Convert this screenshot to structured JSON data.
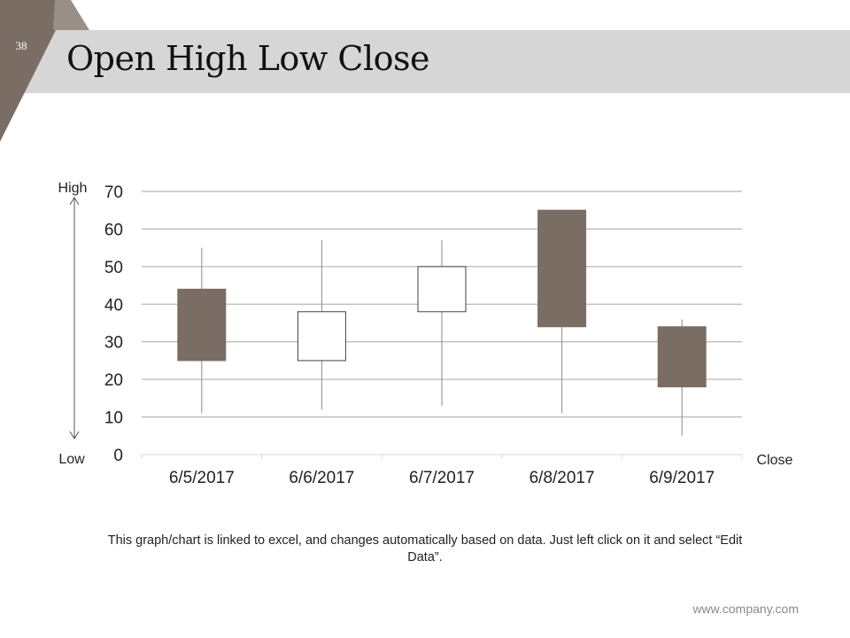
{
  "slide": {
    "number": "38",
    "title": "Open High Low Close",
    "note": "This graph/chart is linked to excel, and changes automatically based on data. Just left click on it and select “Edit Data”.",
    "footer": "www.company.com",
    "accent_color": "#7a6d64"
  },
  "chart_data": {
    "type": "candlestick",
    "categories": [
      "6/5/2017",
      "6/6/2017",
      "6/7/2017",
      "6/8/2017",
      "6/9/2017"
    ],
    "series": [
      {
        "name": "Open",
        "values": [
          44,
          25,
          38,
          65,
          34
        ]
      },
      {
        "name": "High",
        "values": [
          55,
          57,
          57,
          65,
          36
        ]
      },
      {
        "name": "Low",
        "values": [
          11,
          12,
          13,
          11,
          5
        ]
      },
      {
        "name": "Close",
        "values": [
          25,
          38,
          50,
          34,
          18
        ]
      }
    ],
    "ylim": [
      0,
      70
    ],
    "yticks": [
      "0",
      "10",
      "20",
      "30",
      "40",
      "50",
      "60",
      "70"
    ],
    "grid": true,
    "annotations": {
      "high": "High",
      "low": "Low",
      "close": "Close"
    },
    "colors": {
      "down": "#7a6d64",
      "up": "#ffffff",
      "line": "#8a8a8a"
    }
  }
}
